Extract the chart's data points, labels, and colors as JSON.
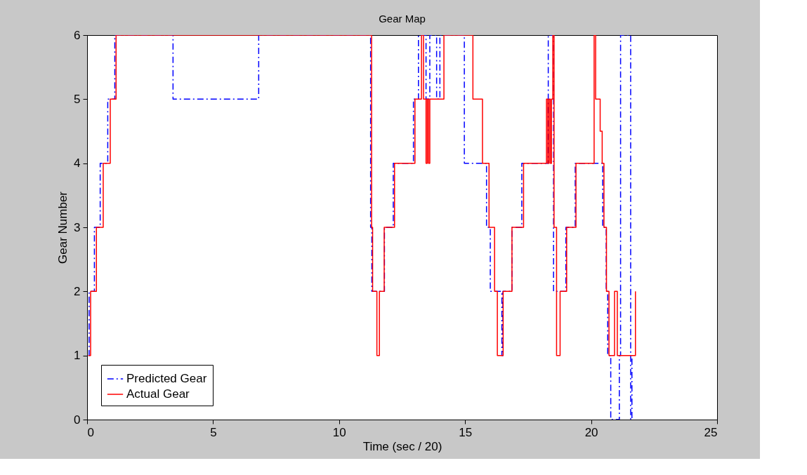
{
  "chart_data": {
    "type": "step",
    "title": "Gear Map",
    "xlabel": "Time (sec / 20)",
    "ylabel": "Gear Number",
    "xlim": [
      0,
      25
    ],
    "xticks": [
      0,
      5,
      10,
      15,
      20,
      25
    ],
    "ylim": [
      0,
      6
    ],
    "yticks": [
      0,
      1,
      2,
      3,
      4,
      5,
      6
    ],
    "grid": false,
    "legend": "bottom left",
    "marker": "none",
    "series": [
      {
        "name": "Predicted Gear",
        "color": "#0000ff",
        "line_style": "dashdot",
        "x": [
          0.05,
          0.08,
          0.29,
          0.52,
          0.82,
          1.1,
          3.41,
          6.81,
          11.25,
          11.3,
          11.8,
          12.15,
          12.95,
          13.15,
          13.45,
          13.6,
          13.87,
          14.0,
          14.97,
          15.85,
          16.0,
          16.46,
          16.5,
          16.86,
          17.25,
          18.3,
          18.51,
          19.0,
          19.37,
          20.46,
          20.6,
          20.66,
          20.78,
          21.12,
          21.17,
          21.57,
          21.62
        ],
        "values": [
          1,
          2,
          3,
          4,
          5,
          6,
          5,
          6,
          3,
          2,
          3,
          4,
          5,
          6,
          5,
          6,
          5,
          6,
          4,
          3,
          2,
          1,
          2,
          3,
          4,
          6,
          2,
          3,
          4,
          3,
          2,
          1,
          0,
          1,
          6,
          0,
          1
        ]
      },
      {
        "name": "Actual Gear",
        "color": "#ff0000",
        "line_style": "solid",
        "x": [
          0.05,
          0.14,
          0.37,
          0.64,
          0.92,
          1.15,
          11.29,
          11.33,
          11.5,
          11.6,
          11.79,
          12.2,
          13.01,
          13.27,
          13.35,
          13.45,
          13.5,
          13.55,
          13.6,
          14.16,
          15.31,
          15.69,
          15.95,
          16.17,
          16.28,
          16.51,
          16.86,
          17.32,
          18.23,
          18.28,
          18.33,
          18.38,
          18.43,
          18.48,
          18.53,
          18.63,
          18.77,
          19.03,
          19.4,
          20.12,
          20.18,
          20.36,
          20.44,
          20.51,
          20.61,
          20.71,
          20.93,
          21.04,
          21.76
        ],
        "values": [
          1,
          2,
          3,
          4,
          5,
          6,
          3,
          2,
          1,
          2,
          3,
          4,
          5,
          6,
          5,
          4,
          5,
          4,
          5,
          6,
          5,
          4,
          3,
          2,
          1,
          2,
          3,
          4,
          5,
          4,
          5,
          4,
          5,
          6,
          3,
          1,
          2,
          3,
          4,
          6,
          5,
          4.5,
          4,
          3,
          2,
          1,
          2,
          1,
          2
        ]
      }
    ]
  }
}
